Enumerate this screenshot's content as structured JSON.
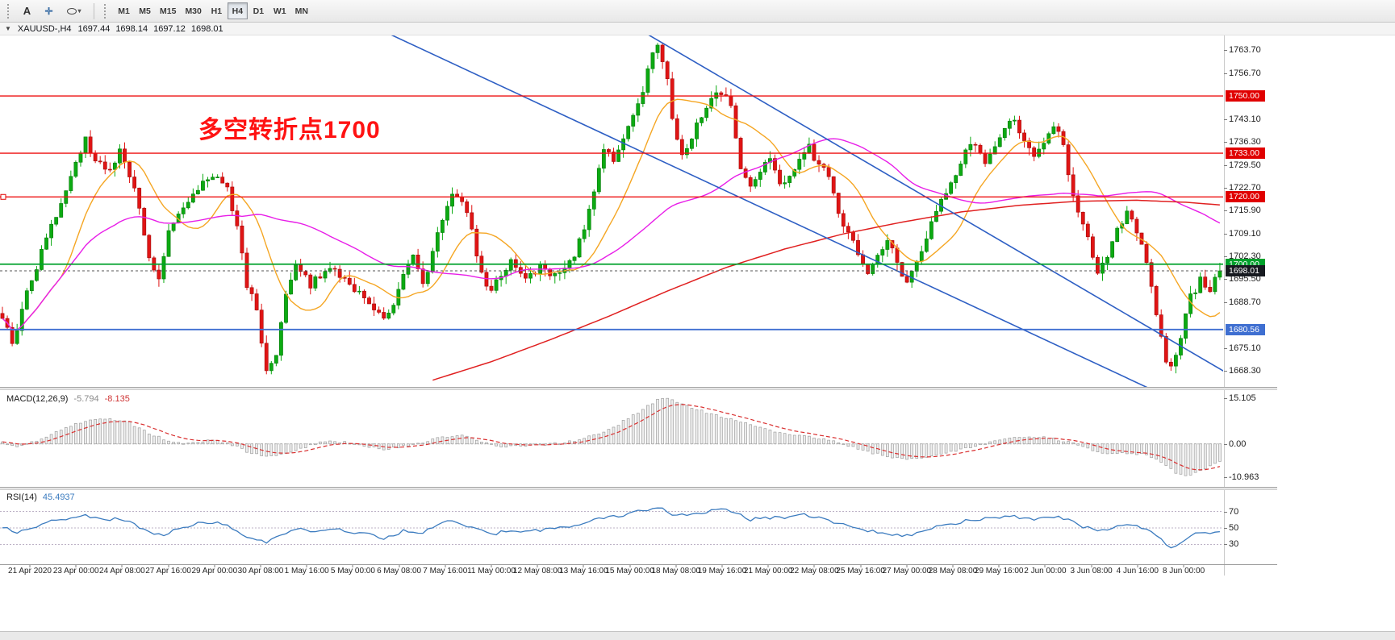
{
  "toolbar": {
    "tools": {
      "text_tool": "A"
    },
    "icons": {
      "chevron_down": "▾",
      "crosshair": "✛",
      "chart": "▼"
    },
    "timeframes": [
      "M1",
      "M5",
      "M15",
      "M30",
      "H1",
      "H4",
      "D1",
      "W1",
      "MN"
    ],
    "active_timeframe": "H4"
  },
  "chart_header": {
    "symbol_timeframe": "XAUUSD-,H4",
    "open": "1697.44",
    "high": "1698.14",
    "low": "1697.12",
    "close": "1698.01"
  },
  "annotation": {
    "text": "多空转折点1700",
    "color": "#ff1212"
  },
  "price_axis": {
    "ticks": [
      "1763.70",
      "1756.70",
      "1743.10",
      "1736.30",
      "1729.50",
      "1722.70",
      "1715.90",
      "1709.10",
      "1702.30",
      "1695.50",
      "1688.70",
      "1675.10",
      "1668.30"
    ],
    "badges": [
      {
        "label": "1750.00",
        "price": 1750.0,
        "color": "#e00000"
      },
      {
        "label": "1733.00",
        "price": 1733.0,
        "color": "#e00000"
      },
      {
        "label": "1720.00",
        "price": 1720.0,
        "color": "#e00000"
      },
      {
        "label": "1700.00",
        "price": 1700.0,
        "color": "#00a12c"
      },
      {
        "label": "1698.01",
        "price": 1698.01,
        "color": "#171a20"
      },
      {
        "label": "1680.56",
        "price": 1680.56,
        "color": "#3f6fd1"
      }
    ]
  },
  "time_axis": {
    "labels": [
      "21 Apr 2020",
      "23 Apr 00:00",
      "24 Apr 08:00",
      "27 Apr 16:00",
      "29 Apr 00:00",
      "30 Apr 08:00",
      "1 May 16:00",
      "5 May 00:00",
      "6 May 08:00",
      "7 May 16:00",
      "11 May 00:00",
      "12 May 08:00",
      "13 May 16:00",
      "15 May 00:00",
      "18 May 08:00",
      "19 May 16:00",
      "21 May 00:00",
      "22 May 08:00",
      "25 May 16:00",
      "27 May 00:00",
      "28 May 08:00",
      "29 May 16:00",
      "2 Jun 00:00",
      "3 Jun 08:00",
      "4 Jun 16:00",
      "8 Jun 00:00"
    ]
  },
  "indicators": {
    "macd": {
      "label": "MACD(12,26,9)",
      "value_main": "-5.794",
      "value_signal": "-8.135",
      "axis_labels": [
        {
          "label": "15.105",
          "value": 15.105
        },
        {
          "label": "0.00",
          "value": 0
        },
        {
          "label": "-10.963",
          "value": -10.963
        }
      ]
    },
    "rsi": {
      "label": "RSI(14)",
      "value": "45.4937",
      "levels": [
        {
          "label": "70",
          "value": 70
        },
        {
          "label": "50",
          "value": 50
        },
        {
          "label": "30",
          "value": 30
        }
      ]
    }
  },
  "chart_data": {
    "type": "candlestick",
    "symbol": "XAUUSD-",
    "timeframe": "H4",
    "candle_count": 250,
    "visible_price_range": [
      1663.5,
      1768
    ],
    "last_ohlc": {
      "open": 1697.44,
      "high": 1698.14,
      "low": 1697.12,
      "close": 1698.01
    },
    "bull_color": "#0caa12",
    "bull_border": "#067a0a",
    "bear_color": "#e01414",
    "bear_border": "#a30b0b",
    "price_path": [
      [
        0,
        1684
      ],
      [
        2,
        1676
      ],
      [
        5,
        1692
      ],
      [
        9,
        1707
      ],
      [
        13,
        1722
      ],
      [
        17,
        1737
      ],
      [
        19,
        1731
      ],
      [
        22,
        1727
      ],
      [
        24,
        1735
      ],
      [
        27,
        1723
      ],
      [
        30,
        1703
      ],
      [
        32,
        1695
      ],
      [
        34,
        1710
      ],
      [
        37,
        1716
      ],
      [
        40,
        1722
      ],
      [
        43,
        1727
      ],
      [
        46,
        1722
      ],
      [
        48,
        1712
      ],
      [
        50,
        1694
      ],
      [
        52,
        1686
      ],
      [
        54,
        1669
      ],
      [
        56,
        1674
      ],
      [
        58,
        1690
      ],
      [
        60,
        1700
      ],
      [
        63,
        1694
      ],
      [
        66,
        1698
      ],
      [
        69,
        1697
      ],
      [
        72,
        1693
      ],
      [
        75,
        1689
      ],
      [
        78,
        1683
      ],
      [
        80,
        1689
      ],
      [
        82,
        1696
      ],
      [
        84,
        1703
      ],
      [
        86,
        1694
      ],
      [
        88,
        1703
      ],
      [
        90,
        1714
      ],
      [
        92,
        1721
      ],
      [
        94,
        1719
      ],
      [
        96,
        1710
      ],
      [
        98,
        1697
      ],
      [
        100,
        1692
      ],
      [
        102,
        1697
      ],
      [
        104,
        1701
      ],
      [
        107,
        1696
      ],
      [
        110,
        1699
      ],
      [
        113,
        1697
      ],
      [
        115,
        1700
      ],
      [
        117,
        1703
      ],
      [
        119,
        1710
      ],
      [
        121,
        1722
      ],
      [
        123,
        1735
      ],
      [
        125,
        1731
      ],
      [
        127,
        1738
      ],
      [
        129,
        1745
      ],
      [
        131,
        1752
      ],
      [
        133,
        1762
      ],
      [
        134,
        1764
      ],
      [
        136,
        1755
      ],
      [
        137,
        1743
      ],
      [
        139,
        1732
      ],
      [
        141,
        1738
      ],
      [
        143,
        1744
      ],
      [
        145,
        1749
      ],
      [
        147,
        1751
      ],
      [
        149,
        1748
      ],
      [
        151,
        1729
      ],
      [
        153,
        1723
      ],
      [
        155,
        1727
      ],
      [
        157,
        1732
      ],
      [
        159,
        1723
      ],
      [
        161,
        1726
      ],
      [
        163,
        1731
      ],
      [
        165,
        1735
      ],
      [
        167,
        1729
      ],
      [
        169,
        1727
      ],
      [
        171,
        1714
      ],
      [
        173,
        1709
      ],
      [
        175,
        1703
      ],
      [
        177,
        1698
      ],
      [
        179,
        1703
      ],
      [
        181,
        1708
      ],
      [
        183,
        1700
      ],
      [
        185,
        1694
      ],
      [
        187,
        1700
      ],
      [
        189,
        1708
      ],
      [
        191,
        1716
      ],
      [
        193,
        1722
      ],
      [
        195,
        1727
      ],
      [
        197,
        1733
      ],
      [
        199,
        1736
      ],
      [
        201,
        1730
      ],
      [
        203,
        1735
      ],
      [
        205,
        1741
      ],
      [
        207,
        1743
      ],
      [
        209,
        1737
      ],
      [
        211,
        1731
      ],
      [
        213,
        1736
      ],
      [
        215,
        1741
      ],
      [
        217,
        1736
      ],
      [
        218,
        1727
      ],
      [
        220,
        1716
      ],
      [
        222,
        1708
      ],
      [
        224,
        1698
      ],
      [
        226,
        1703
      ],
      [
        228,
        1710
      ],
      [
        230,
        1715
      ],
      [
        232,
        1710
      ],
      [
        234,
        1700
      ],
      [
        236,
        1686
      ],
      [
        238,
        1672
      ],
      [
        239,
        1669
      ],
      [
        241,
        1679
      ],
      [
        243,
        1690
      ],
      [
        245,
        1695
      ],
      [
        247,
        1693
      ],
      [
        249,
        1698
      ]
    ],
    "horizontal_lines": [
      {
        "price": 1750.0,
        "color": "#ee1111",
        "style": "solid",
        "width": 1.4
      },
      {
        "price": 1733.0,
        "color": "#ee1111",
        "style": "solid",
        "width": 1.4
      },
      {
        "price": 1720.0,
        "color": "#ee1111",
        "style": "solid",
        "width": 1.4
      },
      {
        "price": 1700.0,
        "color": "#00a12c",
        "style": "solid",
        "width": 1.8
      },
      {
        "price": 1698.01,
        "color": "#555555",
        "style": "dashed",
        "width": 1,
        "role": "current-price"
      },
      {
        "price": 1680.56,
        "color": "#3f6fd1",
        "style": "solid",
        "width": 1.8
      }
    ],
    "trendlines": [
      {
        "from": [
          68,
          1776
        ],
        "to": [
          242,
          1658
        ],
        "color": "#2e5fc4"
      },
      {
        "from": [
          130,
          1770
        ],
        "to": [
          250,
          1668
        ],
        "color": "#2e5fc4"
      }
    ],
    "moving_averages": [
      {
        "name": "fast",
        "color": "#f5a623",
        "period": 13
      },
      {
        "name": "mid",
        "color": "#e81ee8",
        "period": 50
      },
      {
        "name": "slow",
        "color": "#e02020",
        "anchors": [
          [
            88,
            1665.5
          ],
          [
            100,
            1671
          ],
          [
            112,
            1677.5
          ],
          [
            124,
            1684.5
          ],
          [
            136,
            1692
          ],
          [
            148,
            1699
          ],
          [
            160,
            1704.5
          ],
          [
            172,
            1709
          ],
          [
            184,
            1712.5
          ],
          [
            196,
            1715.5
          ],
          [
            208,
            1717.5
          ],
          [
            220,
            1718.7
          ],
          [
            232,
            1719
          ],
          [
            242,
            1718.4
          ],
          [
            249,
            1717.6
          ]
        ]
      }
    ],
    "macd": {
      "histogram_fill": "#ededed",
      "histogram_stroke": "#9e9e9e",
      "signal_color": "#d93030",
      "range": [
        -13.2,
        16.8
      ],
      "path": [
        [
          0,
          0.5
        ],
        [
          3,
          -1.0
        ],
        [
          6,
          0.5
        ],
        [
          10,
          3.0
        ],
        [
          14,
          6.0
        ],
        [
          18,
          7.8
        ],
        [
          22,
          8.4
        ],
        [
          26,
          7.0
        ],
        [
          30,
          3.5
        ],
        [
          34,
          1.0
        ],
        [
          38,
          0.2
        ],
        [
          42,
          1.2
        ],
        [
          46,
          0.5
        ],
        [
          50,
          -2.5
        ],
        [
          54,
          -4.2
        ],
        [
          58,
          -3.0
        ],
        [
          62,
          -1.0
        ],
        [
          66,
          0.8
        ],
        [
          70,
          0.6
        ],
        [
          74,
          -0.6
        ],
        [
          78,
          -1.8
        ],
        [
          82,
          -0.8
        ],
        [
          86,
          0.6
        ],
        [
          90,
          2.4
        ],
        [
          94,
          2.8
        ],
        [
          98,
          0.8
        ],
        [
          102,
          -0.8
        ],
        [
          106,
          -0.6
        ],
        [
          110,
          -0.2
        ],
        [
          114,
          0.2
        ],
        [
          118,
          1.2
        ],
        [
          122,
          3.5
        ],
        [
          126,
          6.5
        ],
        [
          130,
          10.5
        ],
        [
          134,
          14.6
        ],
        [
          136,
          15.1
        ],
        [
          138,
          14.0
        ],
        [
          142,
          11.5
        ],
        [
          146,
          9.5
        ],
        [
          150,
          8.0
        ],
        [
          154,
          6.0
        ],
        [
          158,
          4.0
        ],
        [
          162,
          3.0
        ],
        [
          166,
          2.2
        ],
        [
          170,
          0.8
        ],
        [
          174,
          -1.2
        ],
        [
          178,
          -3.0
        ],
        [
          182,
          -4.4
        ],
        [
          186,
          -5.0
        ],
        [
          190,
          -4.2
        ],
        [
          194,
          -2.6
        ],
        [
          198,
          -1.0
        ],
        [
          202,
          0.6
        ],
        [
          206,
          1.8
        ],
        [
          210,
          2.2
        ],
        [
          214,
          2.0
        ],
        [
          218,
          0.6
        ],
        [
          222,
          -1.6
        ],
        [
          226,
          -3.2
        ],
        [
          230,
          -3.0
        ],
        [
          234,
          -3.6
        ],
        [
          237,
          -6.0
        ],
        [
          240,
          -9.5
        ],
        [
          242,
          -10.6
        ],
        [
          244,
          -9.8
        ],
        [
          246,
          -8.2
        ],
        [
          249,
          -5.794
        ]
      ]
    },
    "rsi": {
      "color": "#3b7bbf",
      "range": [
        8,
        92
      ],
      "path": [
        [
          0,
          52
        ],
        [
          3,
          45
        ],
        [
          6,
          50
        ],
        [
          10,
          58
        ],
        [
          14,
          63
        ],
        [
          17,
          66
        ],
        [
          20,
          60
        ],
        [
          24,
          62
        ],
        [
          27,
          55
        ],
        [
          30,
          44
        ],
        [
          33,
          40
        ],
        [
          36,
          50
        ],
        [
          40,
          55
        ],
        [
          43,
          57
        ],
        [
          46,
          52
        ],
        [
          50,
          40
        ],
        [
          54,
          31
        ],
        [
          57,
          42
        ],
        [
          60,
          50
        ],
        [
          63,
          46
        ],
        [
          66,
          49
        ],
        [
          70,
          47
        ],
        [
          74,
          43
        ],
        [
          78,
          38
        ],
        [
          82,
          46
        ],
        [
          86,
          44
        ],
        [
          90,
          56
        ],
        [
          92,
          59
        ],
        [
          96,
          50
        ],
        [
          100,
          42
        ],
        [
          104,
          48
        ],
        [
          108,
          46
        ],
        [
          112,
          49
        ],
        [
          116,
          52
        ],
        [
          120,
          58
        ],
        [
          124,
          63
        ],
        [
          128,
          67
        ],
        [
          132,
          73
        ],
        [
          134,
          75
        ],
        [
          136,
          70
        ],
        [
          138,
          64
        ],
        [
          141,
          67
        ],
        [
          144,
          70
        ],
        [
          147,
          72
        ],
        [
          150,
          69
        ],
        [
          153,
          60
        ],
        [
          156,
          62
        ],
        [
          160,
          63
        ],
        [
          164,
          66
        ],
        [
          167,
          62
        ],
        [
          170,
          57
        ],
        [
          174,
          51
        ],
        [
          178,
          46
        ],
        [
          182,
          42
        ],
        [
          186,
          40
        ],
        [
          190,
          50
        ],
        [
          194,
          55
        ],
        [
          198,
          60
        ],
        [
          202,
          62
        ],
        [
          206,
          65
        ],
        [
          210,
          60
        ],
        [
          214,
          63
        ],
        [
          216,
          64
        ],
        [
          220,
          54
        ],
        [
          224,
          46
        ],
        [
          228,
          52
        ],
        [
          230,
          55
        ],
        [
          234,
          48
        ],
        [
          237,
          36
        ],
        [
          239,
          27
        ],
        [
          241,
          32
        ],
        [
          243,
          40
        ],
        [
          245,
          44
        ],
        [
          247,
          42
        ],
        [
          249,
          45.4937
        ]
      ]
    }
  }
}
